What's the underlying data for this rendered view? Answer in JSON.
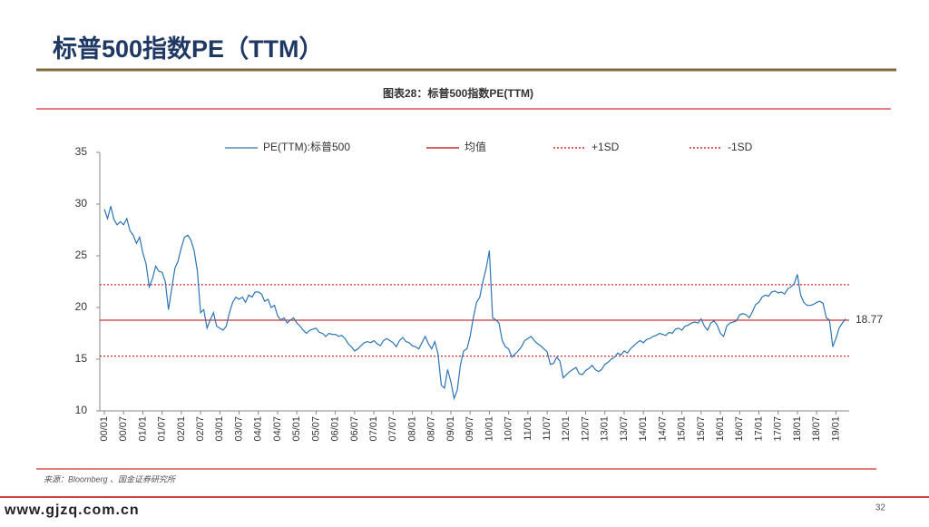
{
  "header": {
    "title": "标普500指数PE（TTM）"
  },
  "chart_caption": "图表28：标普500指数PE(TTM)",
  "chart_data": {
    "type": "line",
    "categories": [
      "00/01",
      null,
      null,
      null,
      null,
      null,
      "00/07",
      null,
      null,
      null,
      null,
      null,
      "01/01",
      null,
      null,
      null,
      null,
      null,
      "01/07",
      null,
      null,
      null,
      null,
      null,
      "02/01",
      null,
      null,
      null,
      null,
      null,
      "02/07",
      null,
      null,
      null,
      null,
      null,
      "03/01",
      null,
      null,
      null,
      null,
      null,
      "03/07",
      null,
      null,
      null,
      null,
      null,
      "04/01",
      null,
      null,
      null,
      null,
      null,
      "04/07",
      null,
      null,
      null,
      null,
      null,
      "05/01",
      null,
      null,
      null,
      null,
      null,
      "05/07",
      null,
      null,
      null,
      null,
      null,
      "06/01",
      null,
      null,
      null,
      null,
      null,
      "06/07",
      null,
      null,
      null,
      null,
      null,
      "07/01",
      null,
      null,
      null,
      null,
      null,
      "07/07",
      null,
      null,
      null,
      null,
      null,
      "08/01",
      null,
      null,
      null,
      null,
      null,
      "08/07",
      null,
      null,
      null,
      null,
      null,
      "09/01",
      null,
      null,
      null,
      null,
      null,
      "09/07",
      null,
      null,
      null,
      null,
      null,
      "10/01",
      null,
      null,
      null,
      null,
      null,
      "10/07",
      null,
      null,
      null,
      null,
      null,
      "11/01",
      null,
      null,
      null,
      null,
      null,
      "11/07",
      null,
      null,
      null,
      null,
      null,
      "12/01",
      null,
      null,
      null,
      null,
      null,
      "12/07",
      null,
      null,
      null,
      null,
      null,
      "13/01",
      null,
      null,
      null,
      null,
      null,
      "13/07",
      null,
      null,
      null,
      null,
      null,
      "14/01",
      null,
      null,
      null,
      null,
      null,
      "14/07",
      null,
      null,
      null,
      null,
      null,
      "15/01",
      null,
      null,
      null,
      null,
      null,
      "15/07",
      null,
      null,
      null,
      null,
      null,
      "16/01",
      null,
      null,
      null,
      null,
      null,
      "16/07",
      null,
      null,
      null,
      null,
      null,
      "17/01",
      null,
      null,
      null,
      null,
      null,
      "17/07",
      null,
      null,
      null,
      null,
      null,
      "18/01",
      null,
      null,
      null,
      null,
      null,
      "18/07",
      null,
      null,
      null,
      null,
      null,
      "19/01",
      null,
      null,
      null
    ],
    "series": [
      {
        "name": "PE(TTM):标普500",
        "color": "#2e75b6",
        "values": [
          29.5,
          28.6,
          29.8,
          28.5,
          28.0,
          28.3,
          28.0,
          28.6,
          27.4,
          27.0,
          26.2,
          26.8,
          25.3,
          24.2,
          22.0,
          22.8,
          24.0,
          23.5,
          23.4,
          22.5,
          19.8,
          21.8,
          23.8,
          24.5,
          25.8,
          26.8,
          27.0,
          26.5,
          25.5,
          23.5,
          19.5,
          19.8,
          18.0,
          18.8,
          19.5,
          18.2,
          18.0,
          17.8,
          18.2,
          19.5,
          20.5,
          21.0,
          20.8,
          21.0,
          20.5,
          21.2,
          21.0,
          21.5,
          21.5,
          21.3,
          20.6,
          20.8,
          20.0,
          20.2,
          19.2,
          18.8,
          19.0,
          18.5,
          18.8,
          19.0,
          18.5,
          18.2,
          17.8,
          17.5,
          17.8,
          17.9,
          18.0,
          17.6,
          17.5,
          17.2,
          17.5,
          17.4,
          17.4,
          17.2,
          17.3,
          17.0,
          16.5,
          16.2,
          15.8,
          16.0,
          16.3,
          16.6,
          16.7,
          16.6,
          16.8,
          16.5,
          16.3,
          16.8,
          17.0,
          16.8,
          16.6,
          16.2,
          16.8,
          17.1,
          16.7,
          16.6,
          16.3,
          16.2,
          16.0,
          16.6,
          17.2,
          16.5,
          16.0,
          16.7,
          15.5,
          12.5,
          12.2,
          14.0,
          12.8,
          11.2,
          12.0,
          14.5,
          15.8,
          16.0,
          17.2,
          19.0,
          20.5,
          21.0,
          22.5,
          23.8,
          25.5,
          19.0,
          18.8,
          18.5,
          16.8,
          16.2,
          16.0,
          15.2,
          15.5,
          15.8,
          16.2,
          16.8,
          17.0,
          17.2,
          16.8,
          16.5,
          16.3,
          16.0,
          15.7,
          14.5,
          14.6,
          15.2,
          14.8,
          13.2,
          13.5,
          13.8,
          14.0,
          14.2,
          13.6,
          13.5,
          13.9,
          14.1,
          14.4,
          14.0,
          13.8,
          14.0,
          14.5,
          14.7,
          15.0,
          15.2,
          15.6,
          15.4,
          15.8,
          15.6,
          16.0,
          16.3,
          16.6,
          16.8,
          16.6,
          16.9,
          17.0,
          17.2,
          17.3,
          17.5,
          17.4,
          17.3,
          17.6,
          17.5,
          17.9,
          18.0,
          17.8,
          18.2,
          18.3,
          18.5,
          18.6,
          18.5,
          18.9,
          18.2,
          17.8,
          18.5,
          18.7,
          18.3,
          17.5,
          17.2,
          18.2,
          18.5,
          18.6,
          18.7,
          19.3,
          19.4,
          19.3,
          19.0,
          19.6,
          20.3,
          20.5,
          21.0,
          21.2,
          21.1,
          21.5,
          21.6,
          21.4,
          21.5,
          21.3,
          21.8,
          22.0,
          22.3,
          23.2,
          21.2,
          20.5,
          20.2,
          20.2,
          20.3,
          20.5,
          20.6,
          20.4,
          19.0,
          18.8,
          16.2,
          17.0,
          18.0,
          18.5,
          18.9
        ]
      }
    ],
    "reference_lines": [
      {
        "name": "均值",
        "value": 18.77,
        "color": "#c00000",
        "style": "solid"
      },
      {
        "name": "+1SD",
        "value": 22.2,
        "color": "#c00000",
        "style": "dashed"
      },
      {
        "name": "-1SD",
        "value": 15.3,
        "color": "#c00000",
        "style": "dashed"
      }
    ],
    "ylim": [
      10,
      35
    ],
    "yticks": [
      10,
      15,
      20,
      25,
      30,
      35
    ],
    "legend": "top"
  },
  "source": "来源：Bloomberg 、国金证券研究所",
  "footer": {
    "website": "www.gjzq.com.cn",
    "page": "32"
  }
}
